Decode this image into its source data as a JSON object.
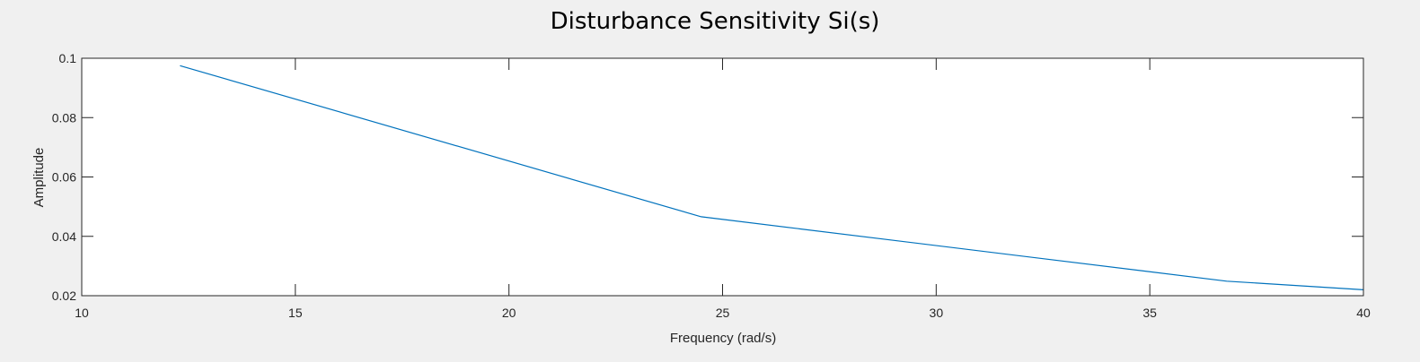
{
  "chart_data": {
    "type": "line",
    "title": "Disturbance Sensitivity Si(s)",
    "xlabel": "Frequency (rad/s)",
    "ylabel": "Amplitude",
    "xlim": [
      10,
      40
    ],
    "ylim": [
      0.02,
      0.1
    ],
    "xticks": [
      "10",
      "15",
      "20",
      "25",
      "30",
      "35",
      "40"
    ],
    "yticks": [
      "0.02",
      "0.04",
      "0.06",
      "0.08",
      "0.1"
    ],
    "grid": false,
    "series": [
      {
        "color": "#0072bd",
        "x": [
          12.3,
          24.5,
          36.8,
          40
        ],
        "y": [
          0.0975,
          0.0466,
          0.0249,
          0.022
        ]
      }
    ]
  }
}
